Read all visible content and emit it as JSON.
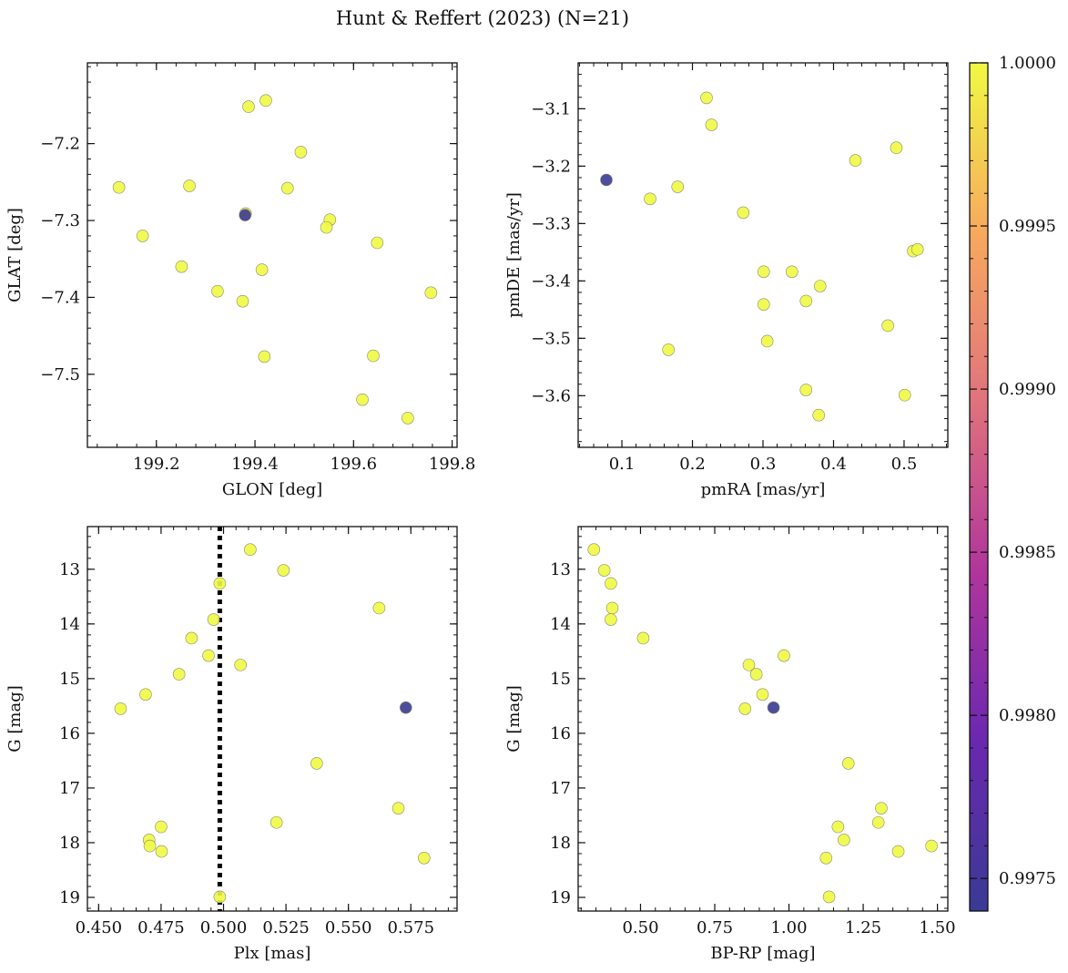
{
  "figure": {
    "title": "Hunt & Reffert (2023) (N=21)"
  },
  "colorbar": {
    "min": 0.9974,
    "max": 1.0,
    "ticks": [
      0.9975,
      0.998,
      0.9985,
      0.999,
      0.9995,
      1.0
    ],
    "tick_labels": [
      "0.9975",
      "0.9980",
      "0.9985",
      "0.9990",
      "0.9995",
      "1.0000"
    ],
    "colormap": "plasma",
    "low_color": "#3a3a94",
    "high_color": "#f0f942"
  },
  "chart_data": [
    {
      "type": "scatter",
      "name": "glon-glat",
      "xlabel": "GLON [deg]",
      "ylabel": "GLAT [deg]",
      "xlim": [
        199.06,
        199.81
      ],
      "ylim": [
        -7.595,
        -7.095
      ],
      "y_inverted": false,
      "xticks": [
        199.2,
        199.4,
        199.6,
        199.8
      ],
      "xtick_labels": [
        "199.2",
        "199.4",
        "199.6",
        "199.8"
      ],
      "yticks": [
        -7.5,
        -7.4,
        -7.3,
        -7.2
      ],
      "ytick_labels": [
        "−7.5",
        "−7.4",
        "−7.3",
        "−7.2"
      ],
      "points": [
        {
          "x": 199.387,
          "y": -7.152,
          "c": 1.0
        },
        {
          "x": 199.422,
          "y": -7.144,
          "c": 1.0
        },
        {
          "x": 199.493,
          "y": -7.211,
          "c": 1.0
        },
        {
          "x": 199.124,
          "y": -7.257,
          "c": 1.0
        },
        {
          "x": 199.267,
          "y": -7.255,
          "c": 1.0
        },
        {
          "x": 199.466,
          "y": -7.258,
          "c": 1.0
        },
        {
          "x": 199.38,
          "y": -7.293,
          "c": 0.9974
        },
        {
          "x": 199.381,
          "y": -7.291,
          "c": 1.0
        },
        {
          "x": 199.552,
          "y": -7.299,
          "c": 1.0
        },
        {
          "x": 199.545,
          "y": -7.309,
          "c": 1.0
        },
        {
          "x": 199.172,
          "y": -7.32,
          "c": 1.0
        },
        {
          "x": 199.648,
          "y": -7.329,
          "c": 1.0
        },
        {
          "x": 199.251,
          "y": -7.36,
          "c": 1.0
        },
        {
          "x": 199.414,
          "y": -7.364,
          "c": 1.0
        },
        {
          "x": 199.324,
          "y": -7.392,
          "c": 1.0
        },
        {
          "x": 199.757,
          "y": -7.394,
          "c": 1.0
        },
        {
          "x": 199.375,
          "y": -7.405,
          "c": 1.0
        },
        {
          "x": 199.419,
          "y": -7.477,
          "c": 1.0
        },
        {
          "x": 199.64,
          "y": -7.476,
          "c": 1.0
        },
        {
          "x": 199.618,
          "y": -7.533,
          "c": 1.0
        },
        {
          "x": 199.71,
          "y": -7.557,
          "c": 1.0
        }
      ]
    },
    {
      "type": "scatter",
      "name": "pmra-pmde",
      "xlabel": "pmRA [mas/yr]",
      "ylabel": "pmDE [mas/yr]",
      "xlim": [
        0.038,
        0.562
      ],
      "ylim": [
        -3.69,
        -3.02
      ],
      "y_inverted": false,
      "xticks": [
        0.1,
        0.2,
        0.3,
        0.4,
        0.5
      ],
      "xtick_labels": [
        "0.1",
        "0.2",
        "0.3",
        "0.4",
        "0.5"
      ],
      "yticks": [
        -3.6,
        -3.5,
        -3.4,
        -3.3,
        -3.2,
        -3.1
      ],
      "ytick_labels": [
        "−3.6",
        "−3.5",
        "−3.4",
        "−3.3",
        "−3.2",
        "−3.1"
      ],
      "points": [
        {
          "x": 0.22,
          "y": -3.081,
          "c": 1.0
        },
        {
          "x": 0.227,
          "y": -3.128,
          "c": 1.0
        },
        {
          "x": 0.489,
          "y": -3.168,
          "c": 1.0
        },
        {
          "x": 0.431,
          "y": -3.19,
          "c": 1.0
        },
        {
          "x": 0.078,
          "y": -3.224,
          "c": 0.9974
        },
        {
          "x": 0.179,
          "y": -3.236,
          "c": 1.0
        },
        {
          "x": 0.14,
          "y": -3.257,
          "c": 1.0
        },
        {
          "x": 0.272,
          "y": -3.281,
          "c": 1.0
        },
        {
          "x": 0.513,
          "y": -3.348,
          "c": 1.0
        },
        {
          "x": 0.519,
          "y": -3.345,
          "c": 1.0
        },
        {
          "x": 0.301,
          "y": -3.384,
          "c": 1.0
        },
        {
          "x": 0.341,
          "y": -3.384,
          "c": 1.0
        },
        {
          "x": 0.381,
          "y": -3.409,
          "c": 1.0
        },
        {
          "x": 0.361,
          "y": -3.435,
          "c": 1.0
        },
        {
          "x": 0.301,
          "y": -3.441,
          "c": 1.0
        },
        {
          "x": 0.477,
          "y": -3.478,
          "c": 1.0
        },
        {
          "x": 0.306,
          "y": -3.505,
          "c": 1.0
        },
        {
          "x": 0.166,
          "y": -3.52,
          "c": 1.0
        },
        {
          "x": 0.361,
          "y": -3.59,
          "c": 1.0
        },
        {
          "x": 0.501,
          "y": -3.599,
          "c": 1.0
        },
        {
          "x": 0.379,
          "y": -3.634,
          "c": 1.0
        }
      ]
    },
    {
      "type": "scatter",
      "name": "plx-g",
      "xlabel": "Plx [mas]",
      "ylabel": "G [mag]",
      "xlim": [
        0.4455,
        0.5935
      ],
      "ylim": [
        12.22,
        19.25
      ],
      "y_inverted": true,
      "xticks": [
        0.45,
        0.475,
        0.5,
        0.525,
        0.55,
        0.575
      ],
      "xtick_labels": [
        "0.450",
        "0.475",
        "0.500",
        "0.525",
        "0.550",
        "0.575"
      ],
      "yticks": [
        13,
        14,
        15,
        16,
        17,
        18,
        19
      ],
      "ytick_labels": [
        "13",
        "14",
        "15",
        "16",
        "17",
        "18",
        "19"
      ],
      "vline": {
        "x": 0.4985,
        "style": "dotted"
      },
      "points": [
        {
          "x": 0.5107,
          "y": 12.64,
          "c": 1.0
        },
        {
          "x": 0.524,
          "y": 13.02,
          "c": 1.0
        },
        {
          "x": 0.4985,
          "y": 13.26,
          "c": 1.0
        },
        {
          "x": 0.5623,
          "y": 13.71,
          "c": 1.0
        },
        {
          "x": 0.496,
          "y": 13.92,
          "c": 1.0
        },
        {
          "x": 0.4872,
          "y": 14.26,
          "c": 1.0
        },
        {
          "x": 0.494,
          "y": 14.58,
          "c": 1.0
        },
        {
          "x": 0.5068,
          "y": 14.75,
          "c": 1.0
        },
        {
          "x": 0.4822,
          "y": 14.92,
          "c": 1.0
        },
        {
          "x": 0.4688,
          "y": 15.29,
          "c": 1.0
        },
        {
          "x": 0.573,
          "y": 15.53,
          "c": 0.9974
        },
        {
          "x": 0.4588,
          "y": 15.55,
          "c": 1.0
        },
        {
          "x": 0.5373,
          "y": 16.55,
          "c": 1.0
        },
        {
          "x": 0.57,
          "y": 17.37,
          "c": 1.0
        },
        {
          "x": 0.5212,
          "y": 17.63,
          "c": 1.0
        },
        {
          "x": 0.475,
          "y": 17.71,
          "c": 1.0
        },
        {
          "x": 0.4702,
          "y": 17.95,
          "c": 1.0
        },
        {
          "x": 0.4705,
          "y": 18.06,
          "c": 1.0
        },
        {
          "x": 0.4752,
          "y": 18.16,
          "c": 1.0
        },
        {
          "x": 0.5803,
          "y": 18.28,
          "c": 1.0
        },
        {
          "x": 0.4985,
          "y": 18.99,
          "c": 1.0
        }
      ]
    },
    {
      "type": "scatter",
      "name": "color-magnitude",
      "xlabel": "BP-RP [mag]",
      "ylabel": "G [mag]",
      "xlim": [
        0.29,
        1.535
      ],
      "ylim": [
        12.22,
        19.25
      ],
      "y_inverted": true,
      "xticks": [
        0.5,
        0.75,
        1.0,
        1.25,
        1.5
      ],
      "xtick_labels": [
        "0.50",
        "0.75",
        "1.00",
        "1.25",
        "1.50"
      ],
      "yticks": [
        13,
        14,
        15,
        16,
        17,
        18,
        19
      ],
      "ytick_labels": [
        "13",
        "14",
        "15",
        "16",
        "17",
        "18",
        "19"
      ],
      "points": [
        {
          "x": 0.343,
          "y": 12.64,
          "c": 1.0
        },
        {
          "x": 0.378,
          "y": 13.02,
          "c": 1.0
        },
        {
          "x": 0.4,
          "y": 13.26,
          "c": 1.0
        },
        {
          "x": 0.405,
          "y": 13.71,
          "c": 1.0
        },
        {
          "x": 0.4,
          "y": 13.92,
          "c": 1.0
        },
        {
          "x": 0.509,
          "y": 14.26,
          "c": 1.0
        },
        {
          "x": 0.983,
          "y": 14.58,
          "c": 1.0
        },
        {
          "x": 0.865,
          "y": 14.75,
          "c": 1.0
        },
        {
          "x": 0.89,
          "y": 14.92,
          "c": 1.0
        },
        {
          "x": 0.911,
          "y": 15.29,
          "c": 1.0
        },
        {
          "x": 0.948,
          "y": 15.53,
          "c": 0.9974
        },
        {
          "x": 0.852,
          "y": 15.55,
          "c": 1.0
        },
        {
          "x": 1.2,
          "y": 16.55,
          "c": 1.0
        },
        {
          "x": 1.311,
          "y": 17.37,
          "c": 1.0
        },
        {
          "x": 1.301,
          "y": 17.63,
          "c": 1.0
        },
        {
          "x": 1.165,
          "y": 17.71,
          "c": 1.0
        },
        {
          "x": 1.185,
          "y": 17.95,
          "c": 1.0
        },
        {
          "x": 1.48,
          "y": 18.06,
          "c": 1.0
        },
        {
          "x": 1.368,
          "y": 18.16,
          "c": 1.0
        },
        {
          "x": 1.125,
          "y": 18.28,
          "c": 1.0
        },
        {
          "x": 1.135,
          "y": 18.99,
          "c": 1.0
        }
      ]
    }
  ]
}
